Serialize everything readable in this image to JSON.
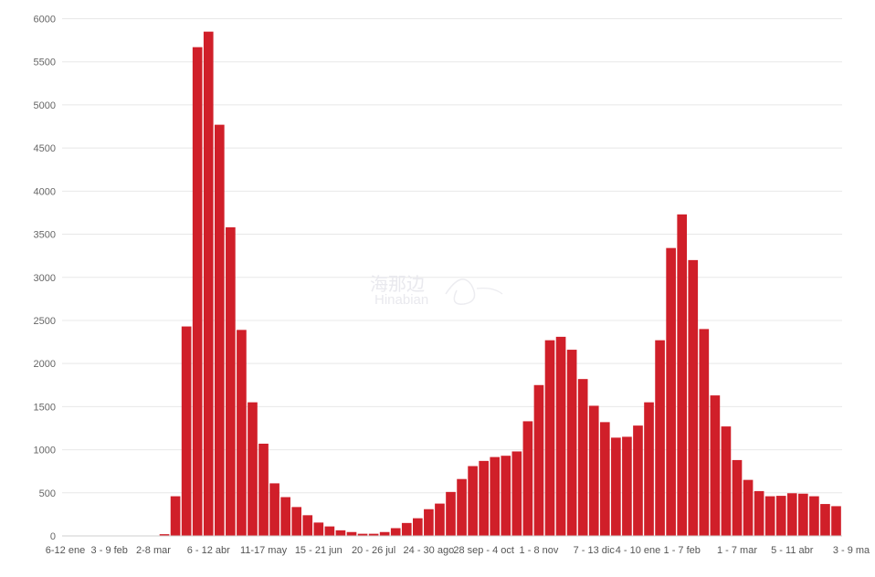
{
  "watermark": {
    "text_cn": "海那边",
    "text_en": "Hinabian"
  },
  "chart_data": {
    "type": "bar",
    "title": "",
    "xlabel": "",
    "ylabel": "",
    "ylim": [
      0,
      6000
    ],
    "yticks": [
      0,
      500,
      1000,
      1500,
      2000,
      2500,
      3000,
      3500,
      4000,
      4500,
      5000,
      5500,
      6000
    ],
    "bar_color": "#d01f29",
    "grid": true,
    "x_tick_labels": [
      {
        "index": 0,
        "label": "6-12 ene"
      },
      {
        "index": 4,
        "label": "3 - 9 feb"
      },
      {
        "index": 8,
        "label": "2-8 mar"
      },
      {
        "index": 13,
        "label": "6 - 12 abr"
      },
      {
        "index": 18,
        "label": "11-17 may"
      },
      {
        "index": 23,
        "label": "15 - 21 jun"
      },
      {
        "index": 28,
        "label": "20 - 26 jul"
      },
      {
        "index": 33,
        "label": "24 - 30 ago"
      },
      {
        "index": 38,
        "label": "28 sep - 4 oct"
      },
      {
        "index": 43,
        "label": "1 - 8 nov"
      },
      {
        "index": 48,
        "label": "7 - 13 dic"
      },
      {
        "index": 52,
        "label": "4 - 10 ene"
      },
      {
        "index": 56,
        "label": "1 - 7 feb"
      },
      {
        "index": 61,
        "label": "1 - 7 mar"
      },
      {
        "index": 66,
        "label": "5 - 11 abr"
      },
      {
        "index": 70,
        "label": "3 - 9 ma"
      }
    ],
    "values": [
      0,
      0,
      0,
      0,
      0,
      0,
      0,
      0,
      0,
      20,
      460,
      2430,
      5670,
      5850,
      4770,
      3580,
      2390,
      1550,
      1070,
      610,
      450,
      335,
      240,
      155,
      110,
      65,
      45,
      25,
      25,
      45,
      90,
      150,
      205,
      310,
      375,
      510,
      660,
      810,
      870,
      915,
      930,
      980,
      1330,
      1750,
      2270,
      2310,
      2160,
      1820,
      1510,
      1320,
      1140,
      1150,
      1280,
      1550,
      2270,
      3340,
      3730,
      3200,
      2400,
      1630,
      1270,
      880,
      650,
      520,
      460,
      465,
      495,
      490,
      460,
      370,
      345
    ]
  }
}
